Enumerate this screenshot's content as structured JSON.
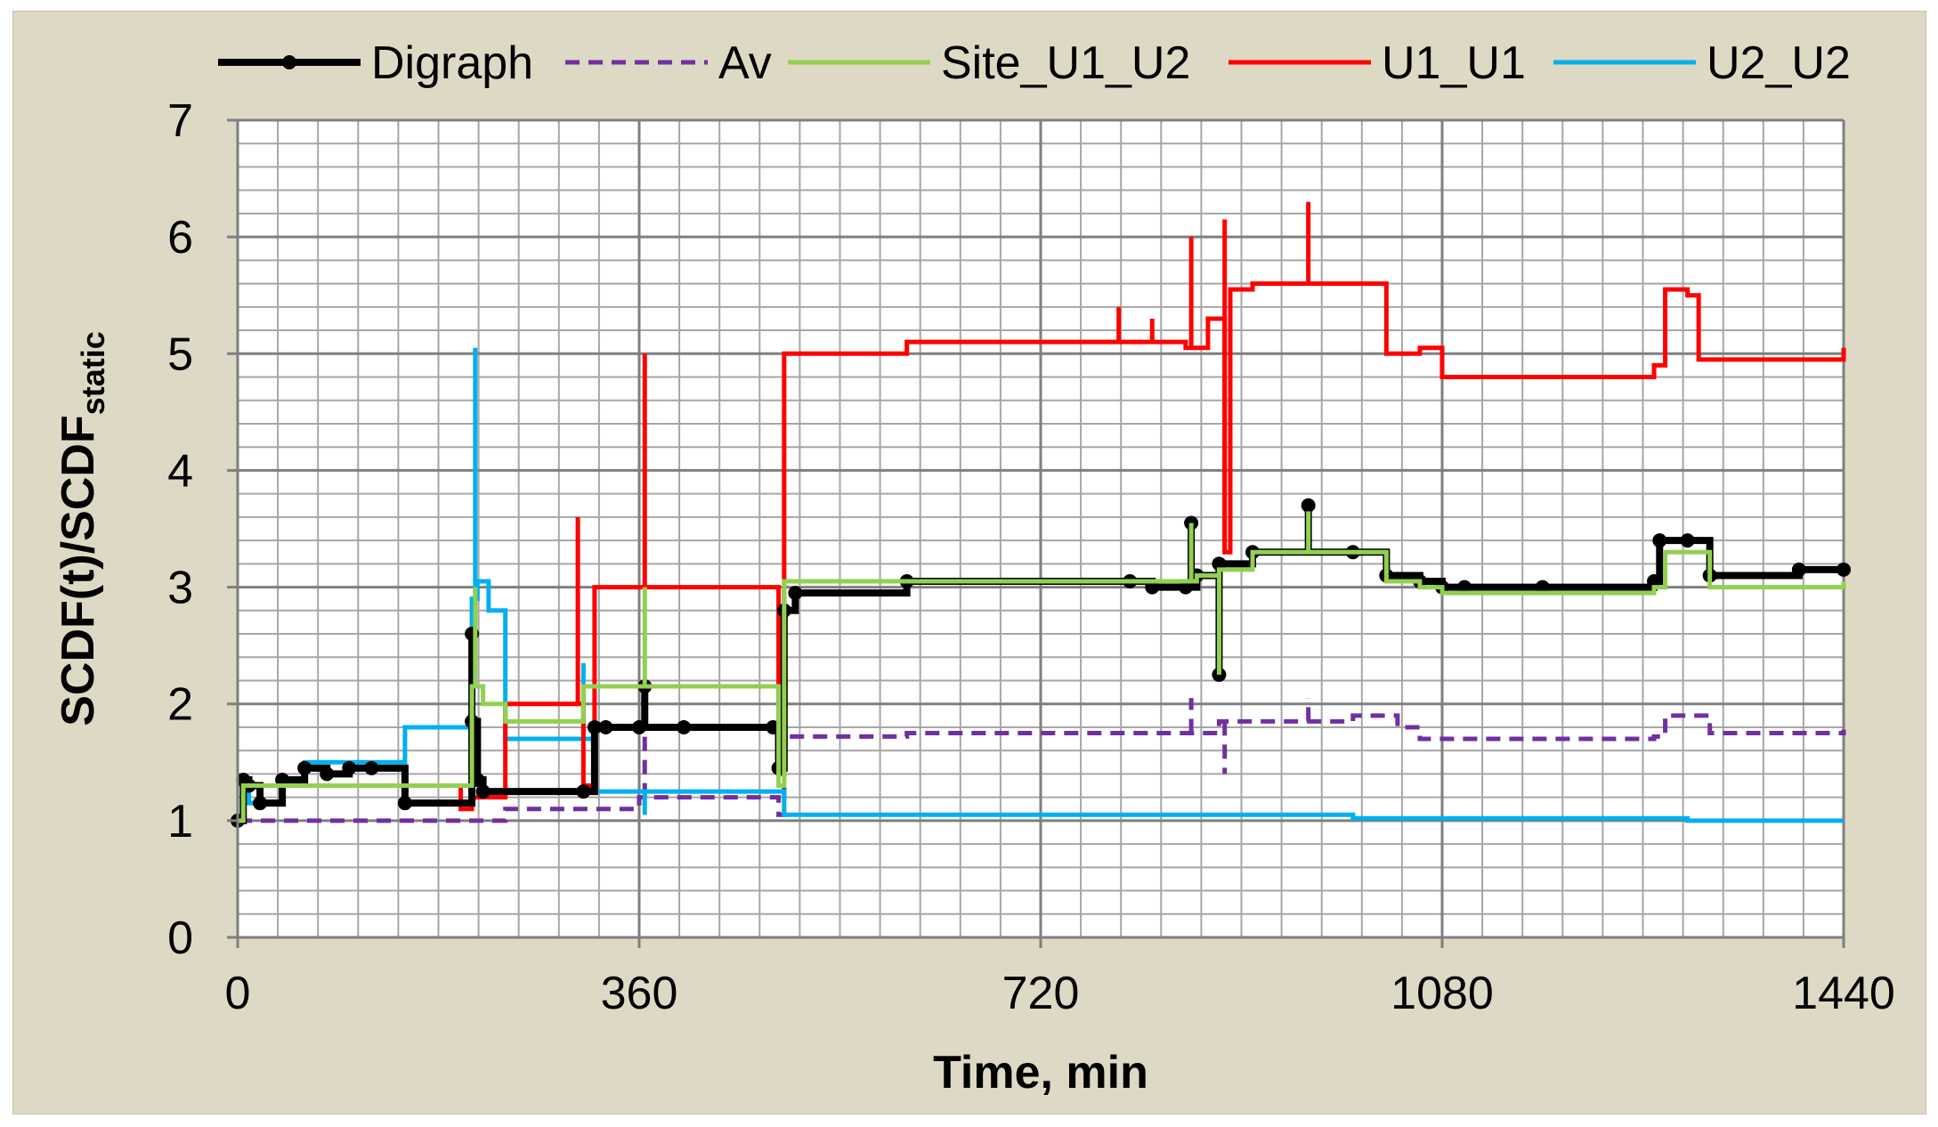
{
  "chart_data": {
    "type": "line",
    "title": "",
    "xlabel": "Time, min",
    "ylabel": "SCDF(t)/SCDF",
    "ylabel_sub": "static",
    "xlim": [
      0,
      1440
    ],
    "ylim": [
      0,
      7
    ],
    "xticks": [
      0,
      360,
      720,
      1080,
      1440
    ],
    "yticks": [
      0,
      1,
      2,
      3,
      4,
      5,
      6,
      7
    ],
    "minor_x_step": 36,
    "minor_y_step": 0.2,
    "grid": true,
    "legend_position": "top",
    "series": [
      {
        "name": "Digraph",
        "color": "#000000",
        "style": "solid-marker",
        "x": [
          0,
          5,
          10,
          20,
          40,
          60,
          80,
          100,
          120,
          150,
          210,
          215,
          220,
          310,
          320,
          330,
          360,
          400,
          480,
          485,
          490,
          500,
          600,
          800,
          820,
          850,
          860,
          880,
          910,
          1000,
          1030,
          1060,
          1080,
          1100,
          1170,
          1270,
          1275,
          1300,
          1320,
          1400,
          1440
        ],
        "y": [
          1.0,
          1.35,
          1.3,
          1.15,
          1.35,
          1.45,
          1.4,
          1.45,
          1.45,
          1.15,
          1.85,
          1.35,
          1.25,
          1.25,
          1.8,
          1.8,
          1.8,
          1.8,
          1.8,
          1.45,
          2.8,
          2.95,
          3.05,
          3.05,
          3.0,
          3.0,
          3.1,
          3.2,
          3.3,
          3.3,
          3.1,
          3.05,
          3.0,
          3.0,
          3.0,
          3.05,
          3.4,
          3.4,
          3.1,
          3.15,
          3.15
        ]
      },
      {
        "name": "Av",
        "color": "#7030a0",
        "style": "dashed",
        "x": [
          0,
          5,
          200,
          240,
          320,
          360,
          480,
          485,
          490,
          600,
          850,
          880,
          1000,
          1040,
          1060,
          1270,
          1280,
          1300,
          1320,
          1440
        ],
        "y": [
          1.0,
          1.0,
          1.0,
          1.1,
          1.1,
          1.2,
          1.2,
          1.05,
          1.72,
          1.75,
          1.75,
          1.85,
          1.9,
          1.8,
          1.7,
          1.72,
          1.9,
          1.9,
          1.75,
          1.78
        ]
      },
      {
        "name": "Site_U1_U2",
        "color": "#92d050",
        "style": "solid",
        "x": [
          0,
          5,
          200,
          210,
          220,
          240,
          300,
          310,
          320,
          360,
          480,
          485,
          490,
          600,
          850,
          860,
          880,
          910,
          1000,
          1030,
          1060,
          1080,
          1270,
          1280,
          1300,
          1320,
          1440
        ],
        "y": [
          1.0,
          1.3,
          1.3,
          2.15,
          2.0,
          1.85,
          1.85,
          2.15,
          2.15,
          2.15,
          2.15,
          1.3,
          3.05,
          3.05,
          3.05,
          3.1,
          3.15,
          3.3,
          3.3,
          3.05,
          3.0,
          2.95,
          3.0,
          3.3,
          3.3,
          3.0,
          3.05
        ]
      },
      {
        "name": "U1_U1",
        "color": "#ff0000",
        "style": "solid",
        "x": [
          0,
          5,
          200,
          210,
          220,
          240,
          300,
          310,
          320,
          360,
          480,
          485,
          490,
          600,
          800,
          850,
          870,
          885,
          890,
          910,
          1000,
          1030,
          1060,
          1080,
          1270,
          1280,
          1300,
          1310,
          1440
        ],
        "y": [
          1.0,
          1.3,
          1.1,
          1.2,
          1.2,
          2.0,
          2.0,
          1.3,
          3.0,
          3.0,
          3.0,
          1.4,
          5.0,
          5.1,
          5.1,
          5.05,
          5.3,
          3.3,
          5.55,
          5.6,
          5.6,
          5.0,
          5.05,
          4.8,
          4.9,
          5.55,
          5.5,
          4.95,
          5.05
        ]
      },
      {
        "name": "U2_U2",
        "color": "#00b0f0",
        "style": "solid",
        "x": [
          0,
          5,
          10,
          20,
          40,
          60,
          100,
          150,
          210,
          215,
          225,
          240,
          310,
          320,
          360,
          480,
          490,
          600,
          1000,
          1270,
          1300,
          1440
        ],
        "y": [
          1.0,
          1.35,
          1.15,
          1.3,
          1.3,
          1.5,
          1.5,
          1.8,
          2.9,
          3.05,
          2.8,
          1.7,
          1.7,
          1.25,
          1.25,
          1.25,
          1.05,
          1.05,
          1.02,
          1.02,
          1.0,
          1.0
        ]
      }
    ],
    "spikes": [
      {
        "series": "U1_U1",
        "x": 305,
        "y": 3.6
      },
      {
        "series": "U1_U1",
        "x": 365,
        "y": 5.0
      },
      {
        "series": "U1_U1",
        "x": 790,
        "y": 5.4
      },
      {
        "series": "U1_U1",
        "x": 820,
        "y": 5.3
      },
      {
        "series": "U1_U1",
        "x": 855,
        "y": 6.0
      },
      {
        "series": "U1_U1",
        "x": 885,
        "y": 6.15
      },
      {
        "series": "U1_U1",
        "x": 960,
        "y": 6.3
      },
      {
        "series": "U2_U2",
        "x": 213,
        "y": 5.05
      },
      {
        "series": "U2_U2",
        "x": 310,
        "y": 2.35
      },
      {
        "series": "U2_U2",
        "x": 365,
        "y": 1.05
      },
      {
        "series": "Site_U1_U2",
        "x": 213,
        "y": 3.0
      },
      {
        "series": "Site_U1_U2",
        "x": 365,
        "y": 3.0
      },
      {
        "series": "Site_U1_U2",
        "x": 880,
        "y": 2.25
      },
      {
        "series": "Site_U1_U2",
        "x": 855,
        "y": 3.55
      },
      {
        "series": "Site_U1_U2",
        "x": 960,
        "y": 3.65
      },
      {
        "series": "Digraph",
        "x": 210,
        "y": 2.6
      },
      {
        "series": "Digraph",
        "x": 365,
        "y": 2.15
      },
      {
        "series": "Digraph",
        "x": 855,
        "y": 3.55
      },
      {
        "series": "Digraph",
        "x": 880,
        "y": 2.25
      },
      {
        "series": "Digraph",
        "x": 960,
        "y": 3.7
      },
      {
        "series": "Av",
        "x": 365,
        "y": 1.75
      },
      {
        "series": "Av",
        "x": 855,
        "y": 2.05
      },
      {
        "series": "Av",
        "x": 885,
        "y": 1.4
      },
      {
        "series": "Av",
        "x": 960,
        "y": 2.05
      }
    ]
  }
}
